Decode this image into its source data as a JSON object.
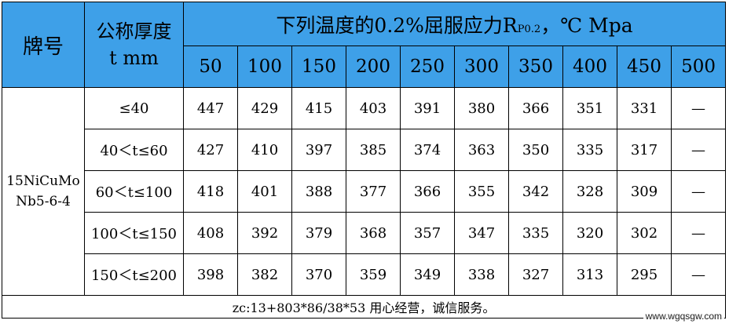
{
  "header": {
    "grade_label": "牌号",
    "thickness_label_1": "公称厚度",
    "thickness_label_2": "t mm",
    "title_main": "下列温度的0.2%屈服应力R",
    "title_sub": "P0.2",
    "title_tail": "，℃ Mpa",
    "temperatures": [
      "50",
      "100",
      "150",
      "200",
      "250",
      "300",
      "350",
      "400",
      "450",
      "500"
    ]
  },
  "grade": {
    "line1": "15NiCuMo",
    "line2": "Nb5-6-4"
  },
  "rows": [
    {
      "range": "≤40",
      "values": [
        "447",
        "429",
        "415",
        "403",
        "391",
        "380",
        "366",
        "351",
        "331",
        "—"
      ]
    },
    {
      "range": "40＜t≤60",
      "values": [
        "427",
        "410",
        "397",
        "385",
        "374",
        "363",
        "350",
        "335",
        "317",
        "—"
      ]
    },
    {
      "range": "60＜t≤100",
      "values": [
        "418",
        "401",
        "388",
        "377",
        "366",
        "355",
        "342",
        "328",
        "309",
        "—"
      ]
    },
    {
      "range": "100＜t≤150",
      "values": [
        "408",
        "392",
        "379",
        "368",
        "357",
        "347",
        "335",
        "320",
        "302",
        "—"
      ]
    },
    {
      "range": "150＜t≤200",
      "values": [
        "398",
        "382",
        "370",
        "359",
        "349",
        "338",
        "327",
        "313",
        "295",
        "—"
      ]
    }
  ],
  "footer": "zc:13+803*86/38*53 用心经营，诚信服务。",
  "watermark": "www.wgqsgw.com",
  "colors": {
    "header_bg": "#3ea0e8",
    "border": "#000000"
  }
}
